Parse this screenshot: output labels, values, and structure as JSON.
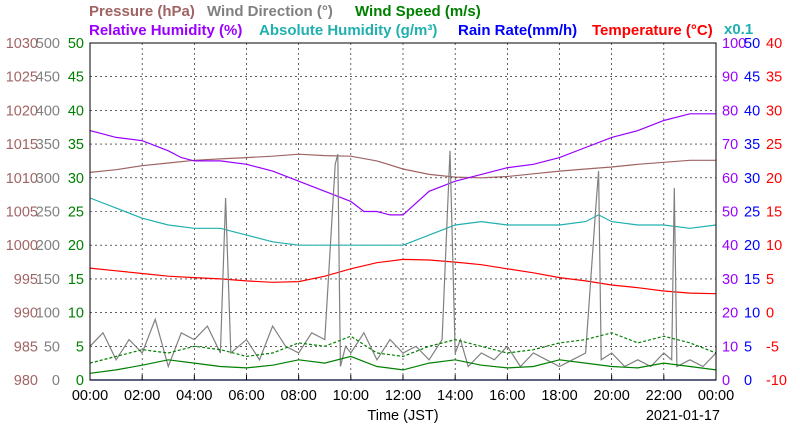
{
  "chart_data": {
    "type": "line",
    "x_label": "Time (JST)",
    "date": "2021-01-17",
    "x_ticks": [
      "00:00",
      "02:00",
      "04:00",
      "06:00",
      "08:00",
      "10:00",
      "12:00",
      "14:00",
      "16:00",
      "18:00",
      "20:00",
      "22:00",
      "00:00"
    ],
    "x_range_hours": [
      0,
      24
    ],
    "grid": true,
    "axes_left": [
      {
        "name": "pressure",
        "color": "#a06464",
        "ticks": [
          "1030",
          "1025",
          "1020",
          "1015",
          "1010",
          "1005",
          "1000",
          "995",
          "990",
          "985",
          "980"
        ],
        "min": 980,
        "max": 1030
      },
      {
        "name": "wind_direction",
        "color": "#808080",
        "ticks": [
          "500",
          "450",
          "400",
          "350",
          "300",
          "250",
          "200",
          "150",
          "100",
          "50",
          "0"
        ],
        "min": 0,
        "max": 500
      },
      {
        "name": "wind_speed",
        "color": "#008000",
        "ticks": [
          "50",
          "45",
          "40",
          "35",
          "30",
          "25",
          "20",
          "15",
          "10",
          "5",
          "0"
        ],
        "min": 0,
        "max": 50
      }
    ],
    "axes_right": [
      {
        "name": "humidity",
        "color": "#9900ff",
        "ticks": [
          "100",
          "90",
          "80",
          "70",
          "60",
          "50",
          "40",
          "30",
          "20",
          "10",
          "0"
        ],
        "min": 0,
        "max": 100
      },
      {
        "name": "rain_rate",
        "color": "#0000ff",
        "ticks": [
          "50",
          "45",
          "40",
          "35",
          "30",
          "25",
          "20",
          "15",
          "10",
          "5",
          "0"
        ],
        "min": 0,
        "max": 50
      },
      {
        "name": "temperature",
        "color": "#ff0000",
        "ticks": [
          "40",
          "35",
          "30",
          "25",
          "20",
          "15",
          "10",
          "5",
          "0",
          "-5",
          "-10"
        ],
        "min": -10,
        "max": 40
      }
    ],
    "headers_row1": [
      {
        "text": "Pressure (hPa)",
        "color": "#a06464"
      },
      {
        "text": "Wind Direction (°)",
        "color": "#808080"
      },
      {
        "text": "Wind Speed (m/s)",
        "color": "#008000"
      }
    ],
    "headers_row2": [
      {
        "text": "Relative Humidity (%)",
        "color": "#9900ff"
      },
      {
        "text": "Absolute Humidity (g/m³)",
        "color": "#20b0b0"
      },
      {
        "text": "Rain Rate(mm/h)",
        "color": "#0000ff"
      },
      {
        "text": "Temperature (°C)",
        "color": "#ff0000"
      }
    ],
    "abs_humidity_scale_note": "x0.1",
    "series": [
      {
        "name": "Pressure (hPa)",
        "color": "#a06464",
        "axis": "pressure",
        "x": [
          0,
          1,
          2,
          3,
          4,
          5,
          6,
          7,
          8,
          9,
          10,
          11,
          12,
          13,
          14,
          15,
          16,
          17,
          18,
          19,
          20,
          21,
          22,
          23,
          24
        ],
        "y": [
          1010.8,
          1011.2,
          1011.8,
          1012.2,
          1012.6,
          1012.8,
          1013.0,
          1013.2,
          1013.5,
          1013.3,
          1013.2,
          1012.5,
          1011.3,
          1010.5,
          1010.1,
          1010.0,
          1010.2,
          1010.6,
          1011.0,
          1011.3,
          1011.6,
          1012.0,
          1012.3,
          1012.6,
          1012.6
        ]
      },
      {
        "name": "Relative Humidity (%)",
        "color": "#9900ff",
        "axis": "humidity",
        "x": [
          0,
          1,
          2,
          3,
          3.5,
          4,
          5,
          6,
          7,
          8,
          9,
          10,
          10.5,
          11,
          11.5,
          12,
          13,
          14,
          15,
          16,
          17,
          18,
          19,
          20,
          21,
          22,
          23,
          24
        ],
        "y": [
          74,
          72,
          71,
          68,
          66,
          65,
          65,
          64,
          62,
          59,
          56,
          53,
          50,
          50,
          49,
          49,
          56,
          59,
          61,
          63,
          64,
          66,
          69,
          72,
          74,
          77,
          79,
          79
        ]
      },
      {
        "name": "Absolute Humidity (g/m³)",
        "color": "#20b0b0",
        "axis": "humidity",
        "x": [
          0,
          1,
          2,
          3,
          4,
          5,
          6,
          7,
          8,
          9,
          10,
          11,
          12,
          13,
          14,
          15,
          16,
          17,
          18,
          19,
          19.5,
          20,
          21,
          22,
          23,
          24
        ],
        "y": [
          54,
          51,
          48,
          46,
          45,
          45,
          43,
          41,
          40,
          40,
          40,
          40,
          40,
          43,
          46,
          47,
          46,
          46,
          46,
          47,
          49,
          47,
          46,
          46,
          45,
          46
        ]
      },
      {
        "name": "Rain Rate(mm/h)",
        "color": "#0000ff",
        "axis": "rain_rate",
        "x": [
          0,
          24
        ],
        "y": [
          0,
          0
        ]
      },
      {
        "name": "Temperature (°C)",
        "color": "#ff0000",
        "axis": "temperature",
        "x": [
          0,
          1,
          2,
          3,
          4,
          5,
          6,
          7,
          8,
          9,
          10,
          11,
          12,
          13,
          14,
          15,
          16,
          17,
          18,
          19,
          20,
          21,
          22,
          23,
          24
        ],
        "y": [
          6.6,
          6.2,
          5.8,
          5.4,
          5.2,
          5.0,
          4.7,
          4.5,
          4.6,
          5.4,
          6.5,
          7.4,
          7.9,
          7.8,
          7.5,
          7.1,
          6.5,
          5.9,
          5.2,
          4.7,
          4.1,
          3.7,
          3.2,
          2.9,
          2.8
        ]
      },
      {
        "name": "Wind Direction (°)",
        "color": "#808080",
        "axis": "wind_direction",
        "x": [
          0,
          0.5,
          1,
          1.5,
          2,
          2.5,
          3,
          3.5,
          4,
          4.5,
          5,
          5.2,
          5.4,
          6,
          6.5,
          7,
          7.5,
          8,
          8.5,
          9,
          9.4,
          9.5,
          9.6,
          9.8,
          10,
          10.5,
          11,
          11.5,
          12,
          12.5,
          13,
          13.5,
          13.8,
          14,
          14.2,
          14.5,
          15,
          15.5,
          16,
          16.5,
          17,
          17.5,
          18,
          18.5,
          19,
          19.4,
          19.5,
          19.6,
          20,
          20.5,
          21,
          21.5,
          22,
          22.3,
          22.4,
          22.5,
          23,
          23.5,
          24
        ],
        "y": [
          50,
          70,
          30,
          60,
          40,
          90,
          20,
          70,
          60,
          80,
          40,
          270,
          40,
          60,
          30,
          80,
          50,
          40,
          70,
          60,
          320,
          335,
          20,
          50,
          40,
          70,
          30,
          60,
          40,
          50,
          30,
          60,
          340,
          40,
          60,
          20,
          40,
          30,
          50,
          20,
          40,
          30,
          20,
          30,
          40,
          260,
          310,
          30,
          40,
          20,
          30,
          20,
          40,
          30,
          285,
          20,
          30,
          20,
          40
        ]
      },
      {
        "name": "Wind Speed (m/s)",
        "color": "#008000",
        "axis": "wind_speed",
        "x": [
          0,
          1,
          2,
          3,
          4,
          5,
          6,
          7,
          8,
          9,
          10,
          11,
          12,
          13,
          14,
          15,
          16,
          17,
          18,
          19,
          20,
          21,
          22,
          23,
          24
        ],
        "y": [
          1.0,
          1.5,
          2.2,
          3.0,
          2.5,
          2.0,
          1.8,
          2.2,
          3.0,
          2.5,
          3.5,
          2.0,
          1.5,
          2.5,
          3.0,
          2.2,
          1.8,
          2.0,
          3.0,
          2.5,
          2.0,
          1.8,
          2.5,
          2.0,
          1.5
        ]
      },
      {
        "name": "Wind Speed gust (m/s)",
        "color": "#008000",
        "axis": "wind_speed",
        "dashed": true,
        "x": [
          0,
          1,
          2,
          3,
          4,
          5,
          6,
          7,
          8,
          9,
          10,
          11,
          12,
          13,
          14,
          15,
          16,
          17,
          18,
          19,
          20,
          21,
          22,
          23,
          24
        ],
        "y": [
          2.5,
          3.5,
          4.5,
          4.0,
          5.0,
          4.5,
          3.5,
          4.0,
          5.5,
          5.0,
          6.5,
          4.0,
          3.5,
          5.0,
          6.0,
          5.0,
          4.0,
          4.5,
          5.5,
          6.0,
          7.0,
          5.5,
          6.5,
          5.5,
          4.0
        ]
      }
    ]
  }
}
